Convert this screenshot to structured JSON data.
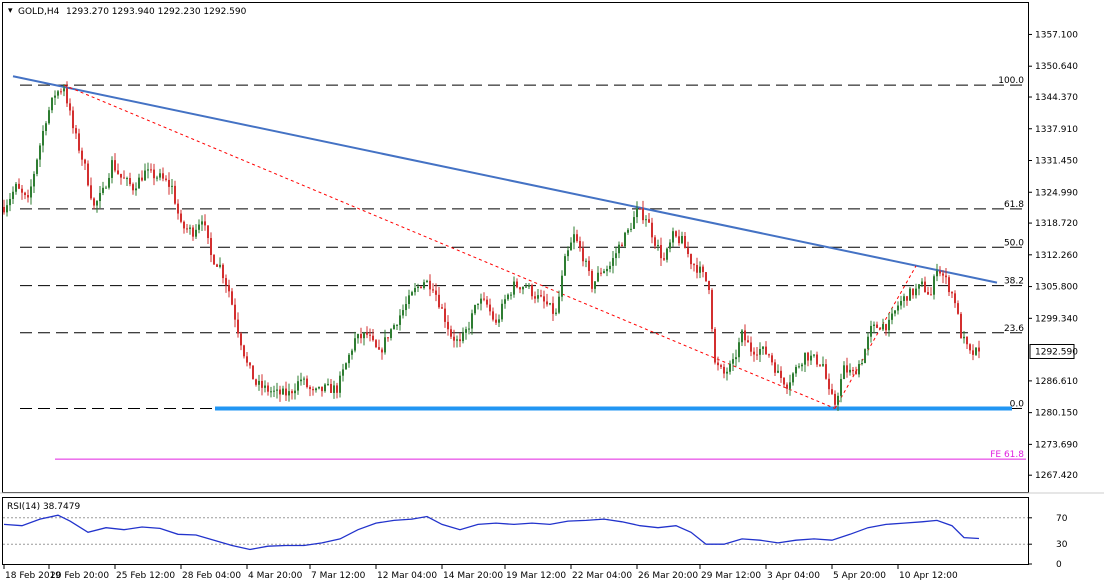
{
  "chart_data": [
    {
      "type": "candlestick",
      "symbol_label": "GOLD,H4",
      "ohlc_readout": "1293.270 1293.940 1292.230 1292.590",
      "current_price": 1292.59,
      "current_price_label": "1292.590",
      "ylim": [
        1264.0,
        1363.5
      ],
      "y_ticks": [
        {
          "value": 1357.1,
          "label": "1357.100"
        },
        {
          "value": 1350.64,
          "label": "1350.640"
        },
        {
          "value": 1344.37,
          "label": "1344.370"
        },
        {
          "value": 1337.91,
          "label": "1337.910"
        },
        {
          "value": 1331.45,
          "label": "1331.450"
        },
        {
          "value": 1324.99,
          "label": "1324.990"
        },
        {
          "value": 1318.72,
          "label": "1318.720"
        },
        {
          "value": 1312.26,
          "label": "1312.260"
        },
        {
          "value": 1305.8,
          "label": "1305.800"
        },
        {
          "value": 1299.34,
          "label": "1299.340"
        },
        {
          "value": 1286.61,
          "label": "1286.610"
        },
        {
          "value": 1280.15,
          "label": "1280.150"
        },
        {
          "value": 1273.69,
          "label": "1273.690"
        },
        {
          "value": 1267.42,
          "label": "1267.420"
        }
      ],
      "fib_levels": [
        {
          "label": "100.0",
          "value": 1346.8
        },
        {
          "label": "61.8",
          "value": 1321.6
        },
        {
          "label": "50.0",
          "value": 1313.8
        },
        {
          "label": "38.2",
          "value": 1306.0
        },
        {
          "label": "23.6",
          "value": 1296.4
        },
        {
          "label": "0.0",
          "value": 1281.0
        }
      ],
      "fe_level": {
        "label": "FE 61.8",
        "value": 1270.7
      },
      "support_level": 1281.0,
      "trendlines": [
        {
          "kind": "resistance",
          "color": "#4472c4",
          "from": {
            "i": 3,
            "price": 1348.6
          },
          "to": {
            "i": 331,
            "price": 1306.6
          }
        },
        {
          "kind": "dotted",
          "color": "#ff0000",
          "from": {
            "i": 20,
            "price": 1346.8
          },
          "to": {
            "i": 277,
            "price": 1281.0
          }
        },
        {
          "kind": "dotted",
          "color": "#ff0000",
          "from": {
            "i": 277,
            "price": 1281.0
          },
          "to": {
            "i": 304,
            "price": 1310.0
          }
        }
      ],
      "colors": {
        "up": "#2e7d32",
        "down": "#d32f2f",
        "support": "#2196f3",
        "fe": "#e020e0",
        "rsi": "#2233cc"
      },
      "price_path": [
        [
          0,
          1322
        ],
        [
          4,
          1326
        ],
        [
          8,
          1323
        ],
        [
          11,
          1332
        ],
        [
          14,
          1340
        ],
        [
          17,
          1345
        ],
        [
          20,
          1346.5
        ],
        [
          23,
          1338
        ],
        [
          27,
          1330
        ],
        [
          30,
          1322
        ],
        [
          33,
          1325
        ],
        [
          36,
          1331
        ],
        [
          39,
          1328
        ],
        [
          43,
          1326
        ],
        [
          47,
          1329
        ],
        [
          52,
          1328
        ],
        [
          56,
          1326
        ],
        [
          59,
          1318
        ],
        [
          63,
          1317
        ],
        [
          66,
          1320
        ],
        [
          69,
          1312
        ],
        [
          72,
          1310
        ],
        [
          75,
          1305
        ],
        [
          78,
          1297
        ],
        [
          81,
          1290
        ],
        [
          84,
          1286
        ],
        [
          87,
          1285
        ],
        [
          91,
          1284
        ],
        [
          95,
          1284
        ],
        [
          99,
          1287
        ],
        [
          103,
          1284
        ],
        [
          107,
          1285
        ],
        [
          111,
          1285
        ],
        [
          114,
          1290
        ],
        [
          117,
          1295
        ],
        [
          121,
          1296
        ],
        [
          125,
          1292
        ],
        [
          128,
          1296
        ],
        [
          131,
          1299
        ],
        [
          134,
          1302
        ],
        [
          137,
          1305
        ],
        [
          140,
          1307
        ],
        [
          143,
          1306
        ],
        [
          146,
          1301
        ],
        [
          149,
          1296
        ],
        [
          152,
          1294
        ],
        [
          155,
          1298
        ],
        [
          158,
          1303
        ],
        [
          161,
          1302
        ],
        [
          164,
          1298
        ],
        [
          167,
          1303
        ],
        [
          170,
          1306
        ],
        [
          174,
          1306
        ],
        [
          177,
          1304
        ],
        [
          181,
          1302
        ],
        [
          184,
          1300
        ],
        [
          187,
          1311
        ],
        [
          190,
          1316
        ],
        [
          193,
          1312
        ],
        [
          196,
          1306
        ],
        [
          199,
          1309
        ],
        [
          202,
          1310
        ],
        [
          205,
          1314
        ],
        [
          208,
          1317
        ],
        [
          211,
          1321
        ],
        [
          214,
          1320
        ],
        [
          217,
          1315
        ],
        [
          220,
          1311
        ],
        [
          223,
          1316
        ],
        [
          226,
          1315
        ],
        [
          229,
          1311
        ],
        [
          232,
          1309
        ],
        [
          235,
          1306
        ],
        [
          237,
          1290
        ],
        [
          240,
          1288
        ],
        [
          243,
          1290
        ],
        [
          246,
          1296
        ],
        [
          249,
          1293
        ],
        [
          252,
          1293
        ],
        [
          255,
          1292
        ],
        [
          258,
          1288
        ],
        [
          261,
          1286
        ],
        [
          264,
          1289
        ],
        [
          267,
          1292
        ],
        [
          270,
          1291
        ],
        [
          273,
          1290
        ],
        [
          275,
          1284
        ],
        [
          277,
          1282
        ],
        [
          280,
          1289
        ],
        [
          283,
          1288
        ],
        [
          286,
          1291
        ],
        [
          289,
          1297
        ],
        [
          292,
          1298
        ],
        [
          295,
          1298
        ],
        [
          298,
          1302
        ],
        [
          301,
          1304
        ],
        [
          304,
          1305
        ],
        [
          306,
          1306
        ],
        [
          309,
          1304
        ],
        [
          311,
          1310
        ],
        [
          314,
          1307
        ],
        [
          317,
          1303
        ],
        [
          319,
          1296
        ],
        [
          322,
          1292
        ],
        [
          325,
          1292.6
        ]
      ],
      "x_ticks": [
        {
          "label": "18 Feb 2019",
          "i": 0
        },
        {
          "label": "20 Feb 20:00",
          "i": 15
        },
        {
          "label": "25 Feb 12:00",
          "i": 37
        },
        {
          "label": "28 Feb 04:00",
          "i": 59
        },
        {
          "label": "4 Mar 20:00",
          "i": 81
        },
        {
          "label": "7 Mar 12:00",
          "i": 102
        },
        {
          "label": "12 Mar 04:00",
          "i": 124
        },
        {
          "label": "14 Mar 20:00",
          "i": 146
        },
        {
          "label": "19 Mar 12:00",
          "i": 167
        },
        {
          "label": "22 Mar 04:00",
          "i": 189
        },
        {
          "label": "26 Mar 20:00",
          "i": 211
        },
        {
          "label": "29 Mar 12:00",
          "i": 232
        },
        {
          "label": "3 Apr 04:00",
          "i": 254
        },
        {
          "label": "5 Apr 20:00",
          "i": 276
        },
        {
          "label": "10 Apr 12:00",
          "i": 298
        }
      ]
    },
    {
      "type": "line",
      "title": "RSI(14) 38.7479",
      "ylim": [
        0,
        100
      ],
      "levels": [
        70,
        30
      ],
      "y_ticks": [
        {
          "value": 70,
          "label": "70"
        },
        {
          "value": 30,
          "label": "30"
        },
        {
          "value": 0,
          "label": "0"
        }
      ],
      "path": [
        [
          0,
          60
        ],
        [
          6,
          58
        ],
        [
          12,
          68
        ],
        [
          18,
          74
        ],
        [
          22,
          65
        ],
        [
          28,
          48
        ],
        [
          34,
          55
        ],
        [
          40,
          52
        ],
        [
          46,
          56
        ],
        [
          52,
          54
        ],
        [
          58,
          45
        ],
        [
          64,
          44
        ],
        [
          70,
          36
        ],
        [
          76,
          28
        ],
        [
          82,
          22
        ],
        [
          88,
          27
        ],
        [
          94,
          28
        ],
        [
          100,
          28
        ],
        [
          106,
          32
        ],
        [
          112,
          38
        ],
        [
          118,
          52
        ],
        [
          124,
          62
        ],
        [
          130,
          66
        ],
        [
          136,
          68
        ],
        [
          141,
          72
        ],
        [
          146,
          60
        ],
        [
          152,
          52
        ],
        [
          158,
          60
        ],
        [
          164,
          62
        ],
        [
          170,
          60
        ],
        [
          176,
          62
        ],
        [
          182,
          60
        ],
        [
          188,
          65
        ],
        [
          194,
          66
        ],
        [
          200,
          68
        ],
        [
          206,
          64
        ],
        [
          212,
          58
        ],
        [
          218,
          55
        ],
        [
          224,
          58
        ],
        [
          229,
          48
        ],
        [
          234,
          30
        ],
        [
          240,
          30
        ],
        [
          246,
          38
        ],
        [
          252,
          36
        ],
        [
          258,
          32
        ],
        [
          264,
          36
        ],
        [
          270,
          38
        ],
        [
          276,
          36
        ],
        [
          282,
          45
        ],
        [
          288,
          55
        ],
        [
          294,
          60
        ],
        [
          300,
          62
        ],
        [
          306,
          64
        ],
        [
          311,
          66
        ],
        [
          316,
          58
        ],
        [
          320,
          40
        ],
        [
          325,
          38.7
        ]
      ]
    }
  ]
}
